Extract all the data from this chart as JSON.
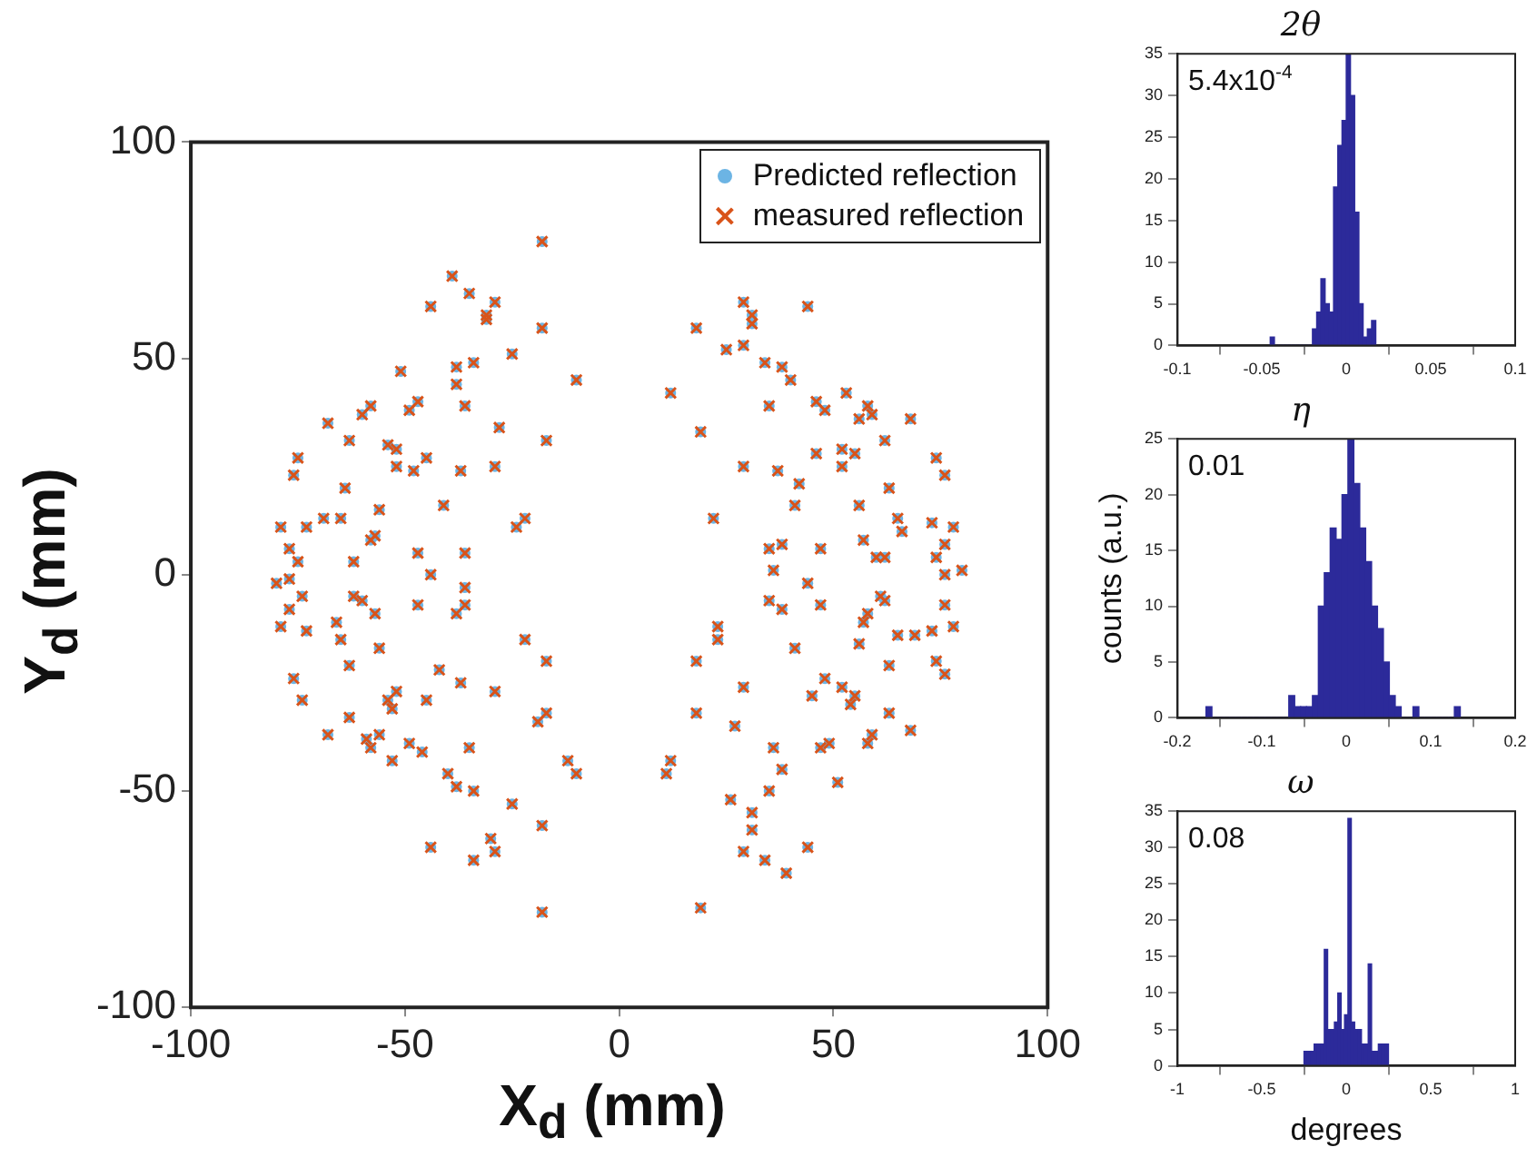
{
  "chart_data": [
    {
      "type": "scatter",
      "xlabel": "X$_{d}$ (mm)",
      "ylabel": "Y$_{d}$ (mm)",
      "xlim": [
        -100,
        100
      ],
      "ylim": [
        -100,
        100
      ],
      "xticks": [
        -100,
        -50,
        0,
        50,
        100
      ],
      "yticks": [
        -100,
        -50,
        0,
        50,
        100
      ],
      "legend": "top right",
      "series": [
        {
          "name": "Predicted reflection",
          "color": "#6cb4e4",
          "marker": "circle",
          "x": [
            -18,
            -39,
            -35,
            -29,
            -31,
            -31,
            -44,
            -18,
            -25,
            -51,
            -38,
            -34,
            -38,
            -10,
            -36,
            -58,
            -60,
            -47,
            -49,
            -68,
            -28,
            -63,
            -17,
            -54,
            -52,
            -75,
            -45,
            -52,
            -48,
            -37,
            -29,
            -76,
            -64,
            -56,
            -41,
            -22,
            -24,
            -79,
            -73,
            -69,
            -65,
            -57,
            -58,
            -77,
            -75,
            -62,
            -47,
            -36,
            -44,
            -80,
            -77,
            -77,
            -74,
            -62,
            -60,
            -57,
            -47,
            -36,
            -36,
            -38,
            -79,
            -73,
            -66,
            -65,
            -56,
            -22,
            -17,
            -63,
            -42,
            -37,
            -29,
            -76,
            -74,
            -52,
            -54,
            -53,
            -45,
            -17,
            -19,
            -63,
            -68,
            -59,
            -56,
            -58,
            -53,
            -49,
            -46,
            -35,
            -12,
            -10,
            -40,
            -38,
            -34,
            -25,
            -18,
            -30,
            -29,
            -44,
            -34,
            -18,
            29,
            31,
            31,
            44,
            18,
            29,
            25,
            34,
            38,
            40,
            12,
            35,
            46,
            48,
            53,
            58,
            59,
            56,
            68,
            19,
            62,
            46,
            52,
            55,
            52,
            74,
            76,
            29,
            37,
            42,
            41,
            63,
            22,
            56,
            65,
            66,
            73,
            78,
            35,
            38,
            36,
            47,
            57,
            60,
            62,
            76,
            74,
            76,
            80,
            44,
            35,
            38,
            47,
            61,
            62,
            58,
            57,
            76,
            78,
            73,
            69,
            65,
            23,
            23,
            18,
            41,
            56,
            63,
            74,
            76,
            48,
            45,
            52,
            54,
            55,
            29,
            18,
            27,
            63,
            68,
            36,
            38,
            47,
            49,
            58,
            59,
            12,
            11,
            26,
            35,
            51,
            31,
            31,
            29,
            34,
            44,
            39,
            19
          ],
          "values": [
            77,
            69,
            65,
            63,
            60,
            59,
            62,
            57,
            51,
            47,
            48,
            49,
            44,
            45,
            39,
            39,
            37,
            40,
            38,
            35,
            34,
            31,
            31,
            30,
            29,
            27,
            27,
            25,
            24,
            24,
            25,
            23,
            20,
            15,
            16,
            13,
            11,
            11,
            11,
            13,
            13,
            9,
            8,
            6,
            3,
            3,
            5,
            5,
            0,
            -2,
            -1,
            -8,
            -5,
            -5,
            -6,
            -9,
            -7,
            -3,
            -7,
            -9,
            -12,
            -13,
            -11,
            -15,
            -17,
            -15,
            -20,
            -21,
            -22,
            -25,
            -27,
            -24,
            -29,
            -27,
            -29,
            -31,
            -29,
            -32,
            -34,
            -33,
            -37,
            -38,
            -37,
            -40,
            -43,
            -39,
            -41,
            -40,
            -43,
            -46,
            -46,
            -49,
            -50,
            -53,
            -58,
            -61,
            -64,
            -63,
            -66,
            -78,
            63,
            60,
            58,
            62,
            57,
            53,
            52,
            49,
            48,
            45,
            42,
            39,
            40,
            38,
            42,
            39,
            37,
            36,
            36,
            33,
            31,
            28,
            29,
            28,
            25,
            27,
            23,
            25,
            24,
            21,
            16,
            20,
            13,
            16,
            13,
            10,
            12,
            11,
            6,
            7,
            1,
            6,
            8,
            4,
            4,
            7,
            4,
            0,
            1,
            -2,
            -6,
            -8,
            -7,
            -5,
            -6,
            -9,
            -11,
            -7,
            -12,
            -13,
            -14,
            -14,
            -12,
            -15,
            -20,
            -17,
            -16,
            -21,
            -20,
            -23,
            -24,
            -28,
            -26,
            -30,
            -28,
            -26,
            -32,
            -35,
            -32,
            -36,
            -40,
            -45,
            -40,
            -39,
            -39,
            -37,
            -43,
            -46,
            -52,
            -50,
            -48,
            -55,
            -59,
            -64,
            -66,
            -63,
            -69,
            -77
          ]
        },
        {
          "name": "measured reflection",
          "color": "#d95319",
          "marker": "cross",
          "x": [
            -18,
            -39,
            -35,
            -29,
            -31,
            -31,
            -44,
            -18,
            -25,
            -51,
            -38,
            -34,
            -38,
            -10,
            -36,
            -58,
            -60,
            -47,
            -49,
            -68,
            -28,
            -63,
            -17,
            -54,
            -52,
            -75,
            -45,
            -52,
            -48,
            -37,
            -29,
            -76,
            -64,
            -56,
            -41,
            -22,
            -24,
            -79,
            -73,
            -69,
            -65,
            -57,
            -58,
            -77,
            -75,
            -62,
            -47,
            -36,
            -44,
            -80,
            -77,
            -77,
            -74,
            -62,
            -60,
            -57,
            -47,
            -36,
            -36,
            -38,
            -79,
            -73,
            -66,
            -65,
            -56,
            -22,
            -17,
            -63,
            -42,
            -37,
            -29,
            -76,
            -74,
            -52,
            -54,
            -53,
            -45,
            -17,
            -19,
            -63,
            -68,
            -59,
            -56,
            -58,
            -53,
            -49,
            -46,
            -35,
            -12,
            -10,
            -40,
            -38,
            -34,
            -25,
            -18,
            -30,
            -29,
            -44,
            -34,
            -18,
            29,
            31,
            31,
            44,
            18,
            29,
            25,
            34,
            38,
            40,
            12,
            35,
            46,
            48,
            53,
            58,
            59,
            56,
            68,
            19,
            62,
            46,
            52,
            55,
            52,
            74,
            76,
            29,
            37,
            42,
            41,
            63,
            22,
            56,
            65,
            66,
            73,
            78,
            35,
            38,
            36,
            47,
            57,
            60,
            62,
            76,
            74,
            76,
            80,
            44,
            35,
            38,
            47,
            61,
            62,
            58,
            57,
            76,
            78,
            73,
            69,
            65,
            23,
            23,
            18,
            41,
            56,
            63,
            74,
            76,
            48,
            45,
            52,
            54,
            55,
            29,
            18,
            27,
            63,
            68,
            36,
            38,
            47,
            49,
            58,
            59,
            12,
            11,
            26,
            35,
            51,
            31,
            31,
            29,
            34,
            44,
            39,
            19
          ],
          "values": [
            77,
            69,
            65,
            63,
            60,
            59,
            62,
            57,
            51,
            47,
            48,
            49,
            44,
            45,
            39,
            39,
            37,
            40,
            38,
            35,
            34,
            31,
            31,
            30,
            29,
            27,
            27,
            25,
            24,
            24,
            25,
            23,
            20,
            15,
            16,
            13,
            11,
            11,
            11,
            13,
            13,
            9,
            8,
            6,
            3,
            3,
            5,
            5,
            0,
            -2,
            -1,
            -8,
            -5,
            -5,
            -6,
            -9,
            -7,
            -3,
            -7,
            -9,
            -12,
            -13,
            -11,
            -15,
            -17,
            -15,
            -20,
            -21,
            -22,
            -25,
            -27,
            -24,
            -29,
            -27,
            -29,
            -31,
            -29,
            -32,
            -34,
            -33,
            -37,
            -38,
            -37,
            -40,
            -43,
            -39,
            -41,
            -40,
            -43,
            -46,
            -46,
            -49,
            -50,
            -53,
            -58,
            -61,
            -64,
            -63,
            -66,
            -78,
            63,
            60,
            58,
            62,
            57,
            53,
            52,
            49,
            48,
            45,
            42,
            39,
            40,
            38,
            42,
            39,
            37,
            36,
            36,
            33,
            31,
            28,
            29,
            28,
            25,
            27,
            23,
            25,
            24,
            21,
            16,
            20,
            13,
            16,
            13,
            10,
            12,
            11,
            6,
            7,
            1,
            6,
            8,
            4,
            4,
            7,
            4,
            0,
            1,
            -2,
            -6,
            -8,
            -7,
            -5,
            -6,
            -9,
            -11,
            -7,
            -12,
            -13,
            -14,
            -14,
            -12,
            -15,
            -20,
            -17,
            -16,
            -21,
            -20,
            -23,
            -24,
            -28,
            -26,
            -30,
            -28,
            -26,
            -32,
            -35,
            -32,
            -36,
            -40,
            -45,
            -40,
            -39,
            -39,
            -37,
            -43,
            -46,
            -52,
            -50,
            -48,
            -55,
            -59,
            -64,
            -66,
            -63,
            -69,
            -77
          ]
        }
      ]
    },
    {
      "type": "histogram",
      "title": "2θ",
      "color": "#2c2a9a",
      "annotations": [
        "5.4x10$^{-4}$"
      ],
      "xlim": [
        -0.1,
        0.1
      ],
      "xticks": [
        -0.1,
        -0.05,
        0,
        0.05,
        0.1
      ],
      "ylim": [
        0,
        35
      ],
      "yticks": [
        0,
        5,
        10,
        15,
        20,
        25,
        30,
        35
      ],
      "bins": [
        -0.045,
        -0.0425,
        -0.04,
        -0.0375,
        -0.035,
        -0.0325,
        -0.03,
        -0.0275,
        -0.025,
        -0.0225,
        -0.02,
        -0.0175,
        -0.015,
        -0.0125,
        -0.01,
        -0.0075,
        -0.005,
        -0.0025,
        0,
        0.0025,
        0.005,
        0.0075,
        0.01,
        0.0125,
        0.015,
        0.0175
      ],
      "values": [
        1,
        0,
        0,
        0,
        0,
        0,
        0,
        0,
        0,
        0,
        2,
        4,
        8,
        5,
        4,
        19,
        24,
        27,
        35,
        30,
        16,
        5,
        1,
        2,
        3
      ]
    },
    {
      "type": "histogram",
      "title": "η",
      "ylabel": "counts (a.u.)",
      "color": "#2c2a9a",
      "annotations": [
        "0.01"
      ],
      "xlim": [
        -0.2,
        0.2
      ],
      "xticks": [
        -0.2,
        -0.1,
        0,
        0.1,
        0.2
      ],
      "ylim": [
        0,
        25
      ],
      "yticks": [
        0,
        5,
        10,
        15,
        20,
        25
      ],
      "bins": [
        -0.166,
        -0.159,
        -0.152,
        -0.145,
        -0.138,
        -0.131,
        -0.124,
        -0.117,
        -0.11,
        -0.103,
        -0.096,
        -0.089,
        -0.082,
        -0.075,
        -0.068,
        -0.061,
        -0.054,
        -0.047,
        -0.04,
        -0.033,
        -0.026,
        -0.019,
        -0.012,
        -0.005,
        0.002,
        0.009,
        0.016,
        0.023,
        0.03,
        0.037,
        0.044,
        0.051,
        0.058,
        0.065,
        0.072,
        0.079,
        0.086,
        0.093,
        0.1,
        0.107,
        0.114,
        0.121,
        0.128,
        0.135
      ],
      "values": [
        1,
        0,
        0,
        0,
        0,
        0,
        0,
        0,
        0,
        0,
        0,
        0,
        0,
        0,
        2,
        1,
        1,
        1,
        2,
        10,
        13,
        17,
        16,
        20,
        25,
        21,
        17,
        14,
        10,
        8,
        5,
        2,
        1,
        0,
        0,
        1,
        0,
        0,
        0,
        0,
        0,
        0,
        1
      ]
    },
    {
      "type": "histogram",
      "title": "ω",
      "xlabel": "degrees",
      "color": "#2c2a9a",
      "annotations": [
        "0.08"
      ],
      "xlim": [
        -1,
        1
      ],
      "xticks": [
        -1,
        -0.5,
        0,
        0.5,
        1
      ],
      "ylim": [
        0,
        35
      ],
      "yticks": [
        0,
        5,
        10,
        15,
        20,
        25,
        30,
        35
      ],
      "bins": [
        -0.25,
        -0.23,
        -0.21,
        -0.19,
        -0.17,
        -0.15,
        -0.13,
        -0.11,
        -0.09,
        -0.07,
        -0.05,
        -0.03,
        -0.01,
        0.01,
        0.03,
        0.05,
        0.07,
        0.09,
        0.11,
        0.13,
        0.15,
        0.17,
        0.19,
        0.21,
        0.23,
        0.25
      ],
      "values": [
        2,
        2,
        2,
        3,
        3,
        3,
        16,
        5,
        5,
        6,
        10,
        5,
        7,
        34,
        6,
        5,
        5,
        3,
        3,
        14,
        2,
        2,
        3,
        3,
        3
      ]
    }
  ]
}
